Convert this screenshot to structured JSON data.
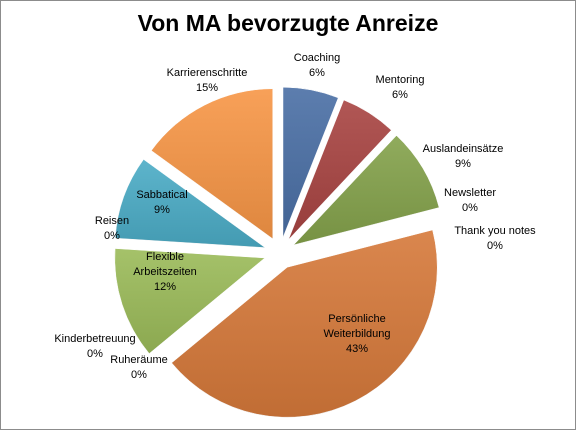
{
  "chart_data": {
    "type": "pie",
    "title": "Von MA bevorzugte Anreize",
    "slices": [
      {
        "label": [
          "Coaching"
        ],
        "value": 6,
        "pct_label": "6%",
        "color": "#4a6fa5"
      },
      {
        "label": [
          "Mentoring"
        ],
        "value": 6,
        "pct_label": "6%",
        "color": "#a84442"
      },
      {
        "label": [
          "Auslandeinsätze"
        ],
        "value": 9,
        "pct_label": "9%",
        "color": "#84a24b"
      },
      {
        "label": [
          "Newsletter"
        ],
        "value": 0,
        "pct_label": "0%",
        "color": "#6e5492"
      },
      {
        "label": [
          "Thank you notes"
        ],
        "value": 0,
        "pct_label": "0%",
        "color": "#4aa6c0"
      },
      {
        "label": [
          "Persönliche",
          "Weiterbildung"
        ],
        "value": 43,
        "pct_label": "43%",
        "color": "#d6793a"
      },
      {
        "label": [
          "Ruheräume"
        ],
        "value": 0,
        "pct_label": "0%",
        "color": "#4a6fa5"
      },
      {
        "label": [
          "Kinderbetreuung"
        ],
        "value": 0,
        "pct_label": "0%",
        "color": "#a84442"
      },
      {
        "label": [
          "Flexible",
          "Arbeitszeiten"
        ],
        "value": 12,
        "pct_label": "12%",
        "color": "#9bbb59"
      },
      {
        "label": [
          "Reisen"
        ],
        "value": 0,
        "pct_label": "0%",
        "color": "#6e5492"
      },
      {
        "label": [
          "Sabbatical"
        ],
        "value": 9,
        "pct_label": "9%",
        "color": "#4bacc6"
      },
      {
        "label": [
          "Karrierenschritte"
        ],
        "value": 15,
        "pct_label": "15%",
        "color": "#f79646"
      }
    ],
    "legend": "none",
    "data_labels": "category name and percentage"
  }
}
